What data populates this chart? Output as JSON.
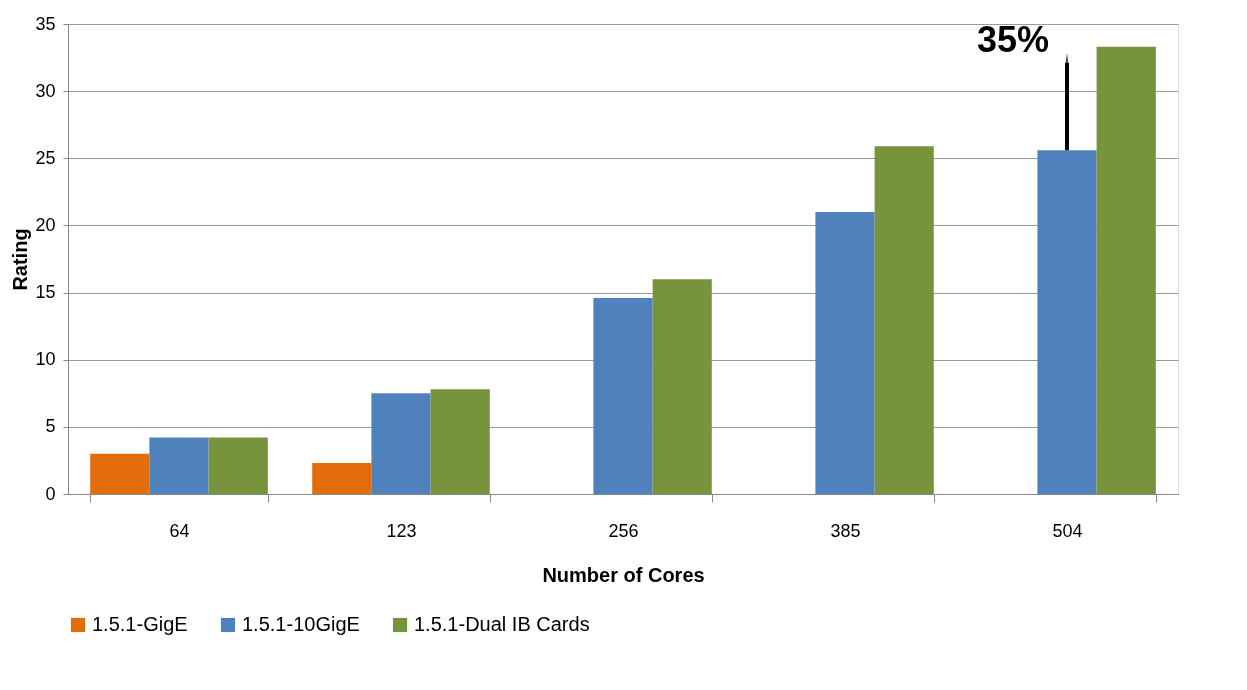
{
  "chart_data": {
    "type": "bar",
    "xlabel": "Number of Cores",
    "ylabel": "Rating",
    "categories": [
      "64",
      "123",
      "256",
      "385",
      "504"
    ],
    "series": [
      {
        "name": "1.5.1-GigE",
        "color": "#e36c0a",
        "values": [
          3.0,
          2.3,
          null,
          null,
          null
        ]
      },
      {
        "name": "1.5.1-10GigE",
        "color": "#4f81bd",
        "values": [
          4.2,
          7.5,
          14.6,
          21.0,
          25.6
        ]
      },
      {
        "name": "1.5.1-Dual IB Cards",
        "color": "#77933c",
        "values": [
          4.2,
          7.8,
          16.0,
          25.9,
          33.3
        ]
      }
    ],
    "ylim": [
      0,
      35
    ],
    "yticks": [
      0,
      5,
      10,
      15,
      20,
      25,
      30,
      35
    ],
    "grid": "y",
    "legend": "bottom",
    "annotations": [
      "35%"
    ]
  }
}
